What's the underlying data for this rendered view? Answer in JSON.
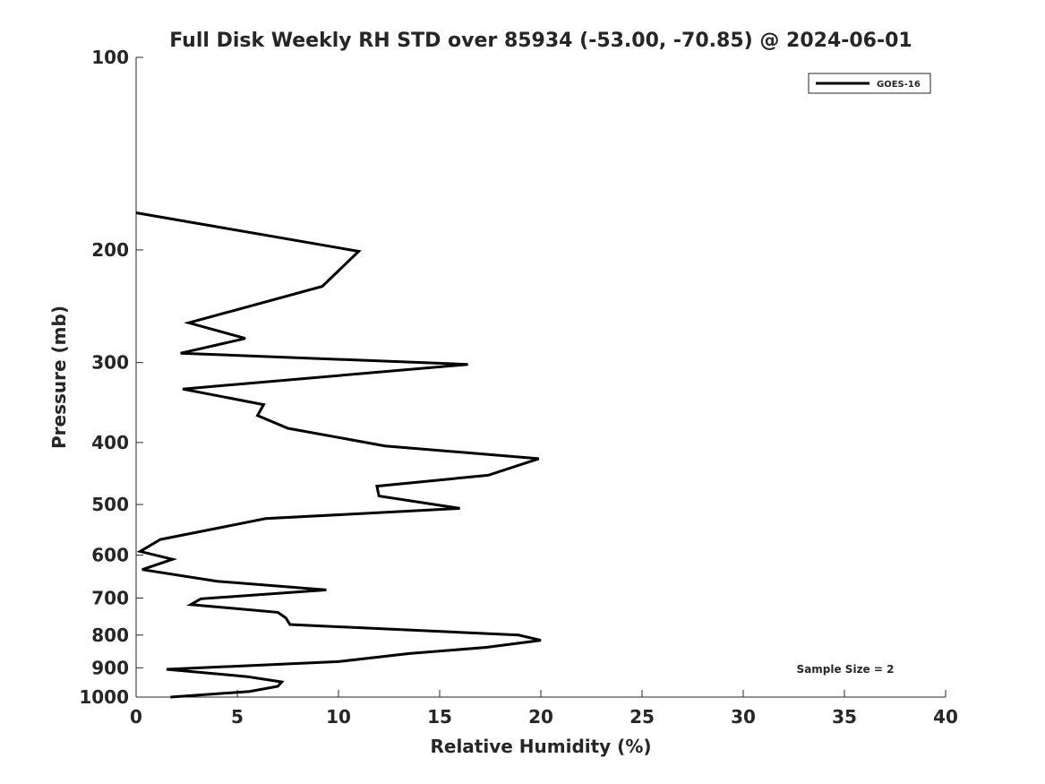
{
  "chart_data": {
    "type": "line",
    "title": "Full Disk Weekly RH STD over 85934 (-53.00, -70.85) @ 2024-06-01",
    "xlabel": "Relative Humidity (%)",
    "ylabel": "Pressure (mb)",
    "xlim": [
      0,
      40
    ],
    "ylim": [
      100,
      1000
    ],
    "y_scale": "log",
    "y_direction": "reversed",
    "x_ticks": [
      "0",
      "5",
      "10",
      "15",
      "20",
      "25",
      "30",
      "35",
      "40"
    ],
    "y_ticks": [
      "100",
      "200",
      "300",
      "400",
      "500",
      "600",
      "700",
      "800",
      "900",
      "1000"
    ],
    "grid": false,
    "legend_position": "top-right",
    "annotation": "Sample Size = 2",
    "series": [
      {
        "name": "GOES-16",
        "color": "#000000",
        "points": [
          [
            0.0,
            175
          ],
          [
            11.0,
            201
          ],
          [
            9.2,
            228
          ],
          [
            2.6,
            260
          ],
          [
            5.4,
            275
          ],
          [
            2.2,
            290
          ],
          [
            16.4,
            302
          ],
          [
            2.3,
            330
          ],
          [
            6.3,
            349
          ],
          [
            6.0,
            363
          ],
          [
            7.5,
            380
          ],
          [
            12.3,
            405
          ],
          [
            19.9,
            424
          ],
          [
            17.4,
            450
          ],
          [
            11.9,
            468
          ],
          [
            12.0,
            485
          ],
          [
            16.0,
            507
          ],
          [
            6.4,
            526
          ],
          [
            1.2,
            567
          ],
          [
            0.2,
            592
          ],
          [
            1.8,
            609
          ],
          [
            0.3,
            632
          ],
          [
            4.0,
            659
          ],
          [
            9.4,
            680
          ],
          [
            3.2,
            702
          ],
          [
            2.7,
            717
          ],
          [
            7.0,
            737
          ],
          [
            7.4,
            752
          ],
          [
            7.6,
            770
          ],
          [
            18.9,
            800
          ],
          [
            20.0,
            815
          ],
          [
            17.3,
            836
          ],
          [
            13.5,
            855
          ],
          [
            10.0,
            880
          ],
          [
            1.5,
            905
          ],
          [
            5.5,
            929
          ],
          [
            7.2,
            947
          ],
          [
            7.0,
            962
          ],
          [
            5.6,
            980
          ],
          [
            1.7,
            1000
          ]
        ]
      }
    ]
  }
}
